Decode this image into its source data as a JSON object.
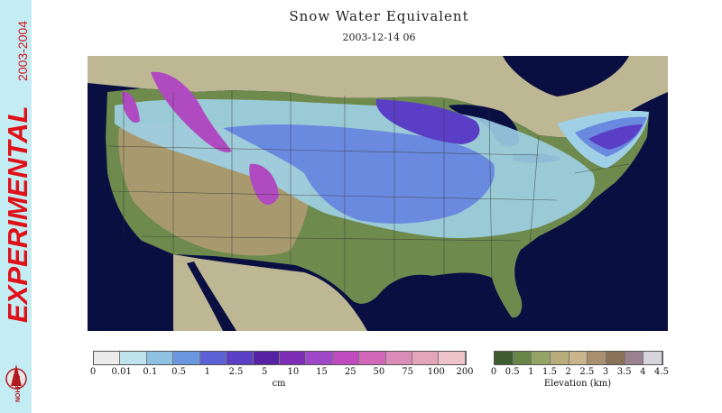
{
  "title": "Snow Water Equivalent",
  "timestamp": "2003-12-14 06",
  "banner": {
    "experimental_label": "EXPERIMENTAL",
    "season_label": "2003-2004",
    "logo_text": "NOHRSC"
  },
  "snow_legend": {
    "unit": "cm",
    "ticks": [
      "0",
      "0.01",
      "0.1",
      "0.5",
      "1",
      "2.5",
      "5",
      "10",
      "15",
      "25",
      "50",
      "75",
      "100",
      "200"
    ],
    "colors": [
      "#ececec",
      "#bfe4ee",
      "#8fc2e2",
      "#6a97df",
      "#5c62d6",
      "#5a3ec6",
      "#5622a4",
      "#7d2cb5",
      "#a046c8",
      "#c04bc0",
      "#d267b9",
      "#dc8cb8",
      "#e4a4ba",
      "#efc4c8"
    ]
  },
  "elevation_legend": {
    "unit": "Elevation (km)",
    "ticks": [
      "0",
      "0.5",
      "1",
      "1.5",
      "2",
      "2.5",
      "3",
      "3.5",
      "4",
      "4.5"
    ],
    "colors": [
      "#3f5c30",
      "#6a8548",
      "#93a466",
      "#b8ad7a",
      "#c8b58c",
      "#a89070",
      "#8a7259",
      "#9b8290",
      "#d8d4dc"
    ]
  },
  "map_colors": {
    "ocean": "#0a0f42",
    "foreign_land": "#bdb794",
    "land_low": "#6e8a4d",
    "land_high": "#a89a6e",
    "snow_light": "#9fd0e6",
    "snow_mid": "#6a8ae0",
    "snow_deep": "#5a3ec6",
    "snow_heavy": "#b04ac0"
  }
}
